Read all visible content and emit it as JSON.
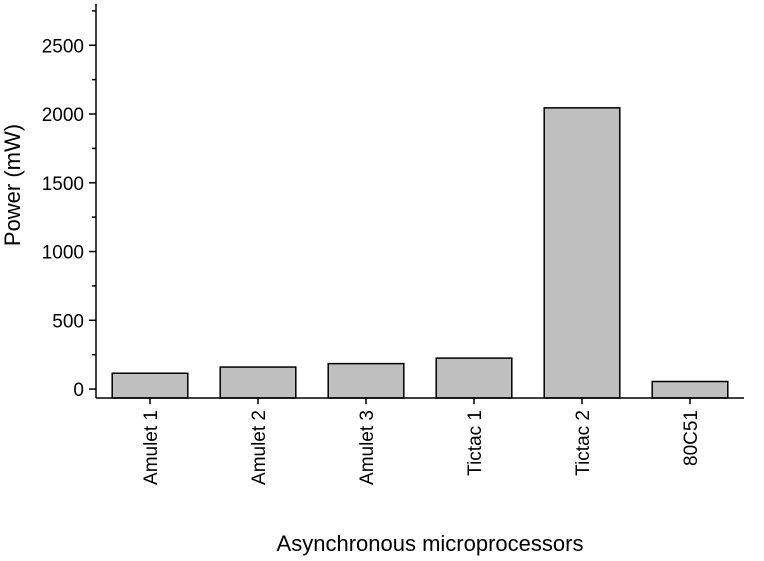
{
  "chart_data": {
    "type": "bar",
    "categories": [
      "Amulet 1",
      "Amulet 2",
      "Amulet 3",
      "Tictac 1",
      "Tictac 2",
      "80C51"
    ],
    "values": [
      115,
      160,
      185,
      225,
      2045,
      55
    ],
    "xlabel": "Asynchronous microprocessors",
    "ylabel": "Power (mW)",
    "ylim": [
      -65,
      2800
    ],
    "yticks": [
      0,
      500,
      1000,
      1500,
      2000,
      2500
    ],
    "ytick_labels": [
      "0",
      "500",
      "1000",
      "1500",
      "2000",
      "2500"
    ],
    "y_minor_step": 250,
    "grid": false,
    "legend": "none",
    "colors": {
      "bar_fill": "#bfbfbf",
      "bar_stroke": "#000000",
      "axis": "#000000"
    }
  }
}
